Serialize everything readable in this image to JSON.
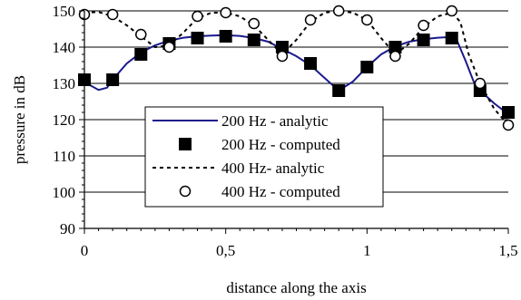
{
  "chart_data": {
    "type": "line",
    "title": "",
    "xlabel": "distance along the axis",
    "ylabel": "pressure in dB",
    "xlim": [
      0,
      1.5
    ],
    "ylim": [
      90,
      150
    ],
    "grid": "horizontal",
    "legend_position": "lower-center",
    "x_ticks": [
      0,
      0.5,
      1,
      1.5
    ],
    "x_tick_labels": [
      "0",
      "0,5",
      "1",
      "1,5"
    ],
    "y_ticks": [
      90,
      100,
      110,
      120,
      130,
      140,
      150
    ],
    "y_tick_labels": [
      "90",
      "100",
      "110",
      "120",
      "130",
      "140",
      "150"
    ],
    "series": [
      {
        "name": "200 Hz - analytic",
        "style": "solid-line",
        "color": "#1a1a8c",
        "x": [
          0,
          0.02,
          0.05,
          0.08,
          0.1,
          0.15,
          0.2,
          0.25,
          0.3,
          0.35,
          0.4,
          0.45,
          0.5,
          0.55,
          0.6,
          0.65,
          0.7,
          0.75,
          0.8,
          0.85,
          0.9,
          0.95,
          1.0,
          1.05,
          1.1,
          1.15,
          1.2,
          1.25,
          1.3,
          1.32,
          1.35,
          1.38,
          1.4,
          1.45,
          1.5
        ],
        "values": [
          131.5,
          129.5,
          128.2,
          128.8,
          131,
          135.5,
          138.5,
          140.5,
          141.8,
          142.6,
          143,
          143.2,
          143.3,
          143.1,
          142.5,
          141.5,
          139.5,
          137.5,
          135,
          131.5,
          128,
          130.5,
          134.5,
          138,
          140.2,
          141.5,
          142.2,
          142.6,
          142.8,
          141.5,
          136,
          130,
          128,
          124.5,
          121.5
        ]
      },
      {
        "name": "200 Hz - computed",
        "style": "filled-square",
        "color": "#000000",
        "x": [
          0,
          0.1,
          0.2,
          0.3,
          0.4,
          0.5,
          0.6,
          0.7,
          0.8,
          0.9,
          1.0,
          1.1,
          1.2,
          1.3,
          1.4,
          1.5
        ],
        "values": [
          131,
          131,
          138,
          141,
          142.5,
          143,
          142,
          140,
          135.5,
          128,
          134.5,
          140,
          142,
          142.5,
          128,
          122
        ]
      },
      {
        "name": "400 Hz- analytic",
        "style": "dashed-line",
        "color": "#000000",
        "x": [
          0,
          0.05,
          0.1,
          0.15,
          0.2,
          0.25,
          0.3,
          0.35,
          0.4,
          0.45,
          0.5,
          0.55,
          0.6,
          0.65,
          0.7,
          0.75,
          0.8,
          0.85,
          0.9,
          0.95,
          1.0,
          1.05,
          1.1,
          1.15,
          1.2,
          1.25,
          1.3,
          1.33,
          1.36,
          1.4,
          1.45,
          1.5
        ],
        "values": [
          149.5,
          149.7,
          148.5,
          146,
          143,
          140,
          140.5,
          144,
          148,
          149.5,
          149.5,
          148.5,
          146,
          142,
          138,
          142,
          147,
          149.5,
          150,
          149.5,
          147.5,
          142.5,
          138,
          141,
          145.5,
          148.5,
          149.5,
          147,
          138,
          130,
          123,
          118.5
        ]
      },
      {
        "name": "400 Hz - computed",
        "style": "open-circle",
        "color": "#000000",
        "x": [
          0,
          0.1,
          0.2,
          0.3,
          0.4,
          0.5,
          0.6,
          0.7,
          0.8,
          0.9,
          1.0,
          1.1,
          1.2,
          1.3,
          1.4,
          1.5
        ],
        "values": [
          149,
          149,
          143.5,
          140,
          148.5,
          149.5,
          146.5,
          137.5,
          147.5,
          150,
          147.5,
          137.5,
          146,
          150,
          130,
          118.5
        ]
      }
    ]
  }
}
